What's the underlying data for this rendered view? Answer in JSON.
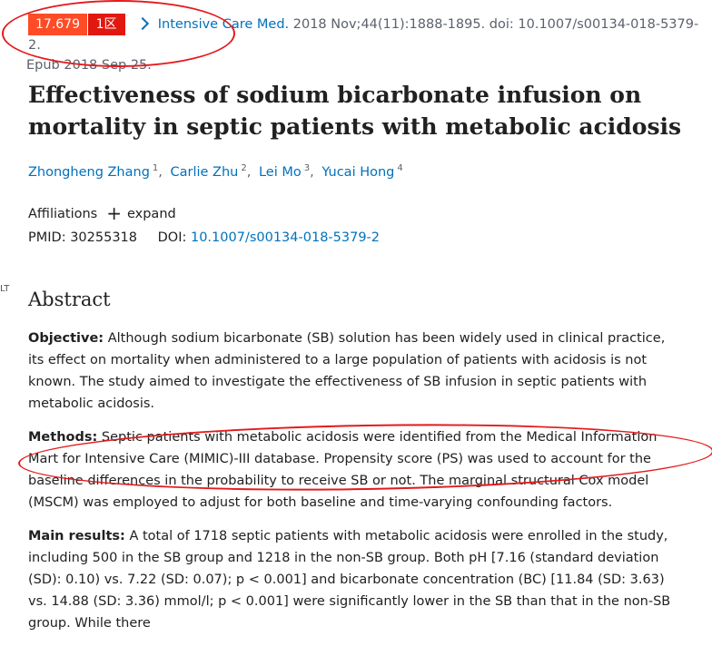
{
  "citation": {
    "impact_factor": "17.679",
    "quartile": "1区",
    "journal": "Intensive Care Med.",
    "details": "2018 Nov;44(11):1888-1895. doi: 10.1007/s00134-018-5379-2.",
    "epub": "Epub 2018 Sep 25."
  },
  "title": "Effectiveness of sodium bicarbonate infusion on mortality in septic patients with metabolic acidosis",
  "authors": [
    {
      "name": "Zhongheng Zhang",
      "sup": "1"
    },
    {
      "name": "Carlie Zhu",
      "sup": "2"
    },
    {
      "name": "Lei Mo",
      "sup": "3"
    },
    {
      "name": "Yucai Hong",
      "sup": "4"
    }
  ],
  "affiliations": {
    "label": "Affiliations",
    "expand": "expand"
  },
  "ids": {
    "pmid_label": "PMID:",
    "pmid": "30255318",
    "doi_label": "DOI:",
    "doi": "10.1007/s00134-018-5379-2"
  },
  "side_mark": "LT",
  "abstract": {
    "heading": "Abstract",
    "objective_label": "Objective:",
    "objective": "Although sodium bicarbonate (SB) solution has been widely used in clinical practice, its effect on mortality when administered to a large population of patients with acidosis is not known. The study aimed to investigate the effectiveness of SB infusion in septic patients with metabolic acidosis.",
    "methods_label": "Methods:",
    "methods": "Septic patients with metabolic acidosis were identified from the Medical Information Mart for Intensive Care (MIMIC)-III database. Propensity score (PS) was used to account for the baseline differences in the probability to receive SB or not. The marginal structural Cox model (MSCM) was employed to adjust for both baseline and time-varying confounding factors.",
    "results_label": "Main results:",
    "results": "A total of 1718 septic patients with metabolic acidosis were enrolled in the study, including 500 in the SB group and 1218 in the non-SB group. Both pH [7.16 (standard deviation (SD): 0.10) vs. 7.22 (SD: 0.07); p < 0.001] and bicarbonate concentration (BC) [11.84 (SD: 3.63) vs. 14.88 (SD: 3.36) mmol/l; p < 0.001] were significantly lower in the SB than that in the non-SB group. While there"
  },
  "colors": {
    "link": "#0071bc",
    "impact_badge": "#ff4b26",
    "quartile_badge": "#e1180f",
    "annotation": "#e41a1c"
  }
}
